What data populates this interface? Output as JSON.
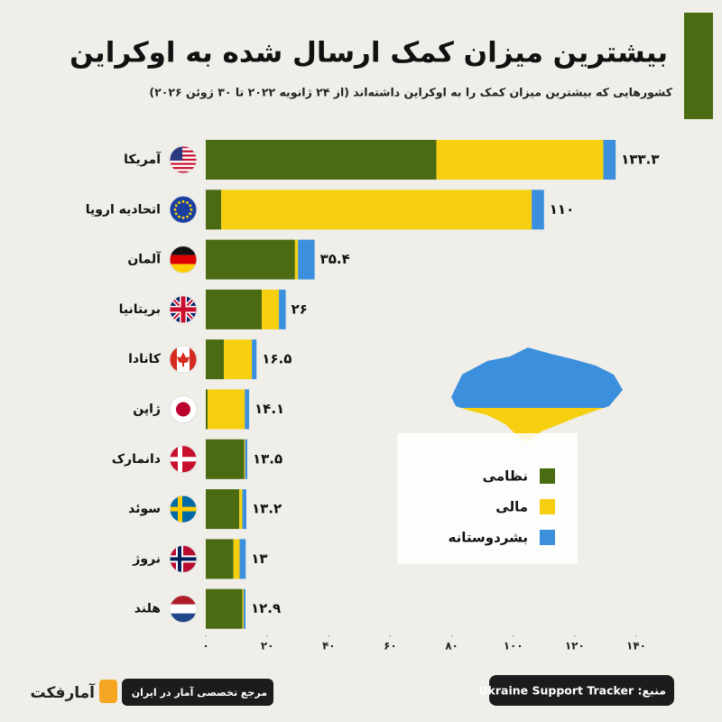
{
  "chart_data": {
    "type": "stacked-barh",
    "title": "بیشترین میزان کمک ارسال شده به اوکراین",
    "subtitle": "کشورهایی که بیشترین میزان کمک را به اوکراین داشته‌اند (از ۲۴ ژانویه ۲۰۲۲ تا ۳۰ ژوئن ۲۰۲۶)",
    "categories": [
      "آمریکا",
      "اتحادیه اروپا",
      "آلمان",
      "بریتانیا",
      "کانادا",
      "ژاپن",
      "دانمارک",
      "سوئد",
      "نروژ",
      "هلند"
    ],
    "series": [
      {
        "name": "نظامی",
        "color": "#4b6b12",
        "values": [
          75,
          5,
          29,
          18.2,
          5.9,
          0.6,
          12.5,
          10.9,
          9,
          11.9
        ]
      },
      {
        "name": "مالی",
        "color": "#f6d010",
        "values": [
          54.3,
          101,
          1,
          5.6,
          9.1,
          12.1,
          0.3,
          1,
          2,
          0.4
        ]
      },
      {
        "name": "بشردوستانه",
        "color": "#3b8fdc",
        "values": [
          4,
          4,
          5.4,
          2.2,
          1.5,
          1.4,
          0.7,
          1.3,
          2,
          0.6
        ]
      }
    ],
    "totals": [
      133.3,
      110,
      35.4,
      26,
      16.5,
      14.1,
      13.5,
      13.2,
      13,
      12.9
    ],
    "total_labels": [
      "۱۳۳.۳",
      "۱۱۰",
      "۳۵.۴",
      "۲۶",
      "۱۶.۵",
      "۱۴.۱",
      "۱۳.۵",
      "۱۳.۲",
      "۱۳",
      "۱۲.۹"
    ],
    "xlim": [
      0,
      140
    ],
    "xticks": [
      {
        "value": 0,
        "label": "۰"
      },
      {
        "value": 20,
        "label": "۲۰"
      },
      {
        "value": 40,
        "label": "۴۰"
      },
      {
        "value": 60,
        "label": "۶۰"
      },
      {
        "value": 80,
        "label": "۸۰"
      },
      {
        "value": 100,
        "label": "۱۰۰"
      },
      {
        "value": 120,
        "label": "۱۲۰"
      },
      {
        "value": 140,
        "label": "۱۴۰"
      }
    ],
    "source": "منبع: Ukraine Support Tracker",
    "brand": "آمارفکت",
    "tagline": "مرجع تخصصی آمار در ایران"
  }
}
